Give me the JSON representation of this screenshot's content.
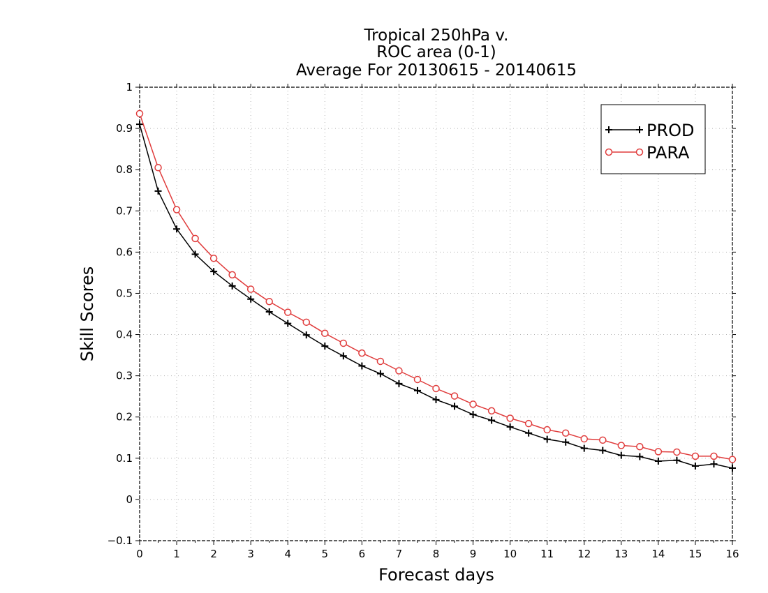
{
  "chart_data": {
    "type": "line",
    "title": [
      "Tropical 250hPa v.",
      "ROC area (0-1)",
      "Average For 20130615 - 20140615"
    ],
    "xlabel": "Forecast days",
    "ylabel": "Skill Scores",
    "xlim": [
      0,
      16
    ],
    "ylim": [
      -0.1,
      1
    ],
    "xticks": [
      0,
      1,
      2,
      3,
      4,
      5,
      6,
      7,
      8,
      9,
      10,
      11,
      12,
      13,
      14,
      15,
      16
    ],
    "yticks": [
      -0.1,
      0,
      0.1,
      0.2,
      0.3,
      0.4,
      0.5,
      0.6,
      0.7,
      0.8,
      0.9,
      1
    ],
    "ytick_labels": [
      "−0.1",
      "0",
      "0.1",
      "0.2",
      "0.3",
      "0.4",
      "0.5",
      "0.6",
      "0.7",
      "0.8",
      "0.9",
      "1"
    ],
    "grid": true,
    "legend_position": "top-right",
    "x": [
      0,
      0.5,
      1,
      1.5,
      2,
      2.5,
      3,
      3.5,
      4,
      4.5,
      5,
      5.5,
      6,
      6.5,
      7,
      7.5,
      8,
      8.5,
      9,
      9.5,
      10,
      10.5,
      11,
      11.5,
      12,
      12.5,
      13,
      13.5,
      14,
      14.5,
      15,
      15.5,
      16
    ],
    "series": [
      {
        "name": "PROD",
        "color": "#000000",
        "marker": "plus",
        "values": [
          0.91,
          0.748,
          0.656,
          0.595,
          0.553,
          0.518,
          0.486,
          0.455,
          0.427,
          0.399,
          0.372,
          0.348,
          0.324,
          0.305,
          0.281,
          0.264,
          0.242,
          0.226,
          0.206,
          0.192,
          0.176,
          0.161,
          0.146,
          0.139,
          0.124,
          0.119,
          0.107,
          0.104,
          0.093,
          0.095,
          0.081,
          0.086,
          0.076
        ]
      },
      {
        "name": "PARA",
        "color": "#e03c3c",
        "marker": "circle",
        "values": [
          0.936,
          0.805,
          0.703,
          0.633,
          0.585,
          0.545,
          0.51,
          0.48,
          0.454,
          0.43,
          0.403,
          0.379,
          0.355,
          0.335,
          0.312,
          0.291,
          0.269,
          0.251,
          0.231,
          0.215,
          0.197,
          0.184,
          0.169,
          0.161,
          0.147,
          0.144,
          0.131,
          0.128,
          0.116,
          0.115,
          0.105,
          0.105,
          0.097
        ]
      }
    ]
  }
}
